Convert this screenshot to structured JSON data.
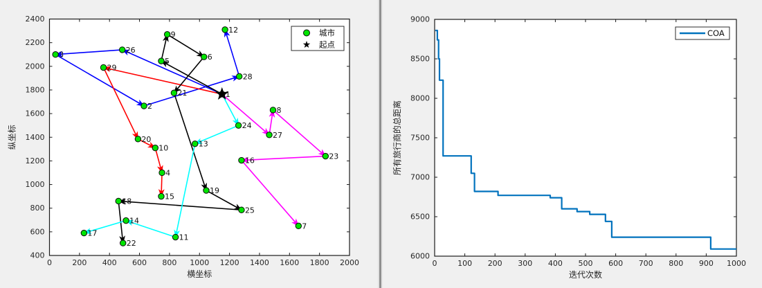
{
  "window": {
    "background": "#f0f0f0",
    "separator_color": "#8f8f8f",
    "axes_background": "#ffffff",
    "axis_color": "#1a1a1a",
    "tick_label_color": "#262626"
  },
  "chart_data": [
    {
      "type": "scatter",
      "title": "",
      "xlabel": "横坐标",
      "ylabel": "纵坐标",
      "xlim": [
        0,
        2000
      ],
      "ylim": [
        400,
        2400
      ],
      "xticks": [
        0,
        200,
        400,
        600,
        800,
        1000,
        1200,
        1400,
        1600,
        1800,
        2000
      ],
      "yticks": [
        400,
        600,
        800,
        1000,
        1200,
        1400,
        1600,
        1800,
        2000,
        2200,
        2400
      ],
      "grid": false,
      "legend": {
        "position": "top-right",
        "entries": [
          {
            "marker": "circle",
            "label": "城市",
            "color": "#00E400"
          },
          {
            "marker": "star",
            "label": "起点",
            "color": "#000000"
          }
        ]
      },
      "city_marker_color": "#00E400",
      "city_marker_edge": "#0b0b0b",
      "start_city_id": 1,
      "cities": [
        {
          "id": 1,
          "x": 1150,
          "y": 1765
        },
        {
          "id": 2,
          "x": 630,
          "y": 1665
        },
        {
          "id": 3,
          "x": 40,
          "y": 2100
        },
        {
          "id": 4,
          "x": 750,
          "y": 1100
        },
        {
          "id": 5,
          "x": 745,
          "y": 2045
        },
        {
          "id": 6,
          "x": 1030,
          "y": 2080
        },
        {
          "id": 7,
          "x": 1660,
          "y": 650
        },
        {
          "id": 8,
          "x": 1490,
          "y": 1630
        },
        {
          "id": 9,
          "x": 785,
          "y": 2270
        },
        {
          "id": 10,
          "x": 705,
          "y": 1310
        },
        {
          "id": 11,
          "x": 840,
          "y": 555
        },
        {
          "id": 12,
          "x": 1170,
          "y": 2310
        },
        {
          "id": 13,
          "x": 970,
          "y": 1345
        },
        {
          "id": 14,
          "x": 510,
          "y": 695
        },
        {
          "id": 15,
          "x": 745,
          "y": 900
        },
        {
          "id": 16,
          "x": 1280,
          "y": 1205
        },
        {
          "id": 17,
          "x": 230,
          "y": 590
        },
        {
          "id": 18,
          "x": 460,
          "y": 860
        },
        {
          "id": 19,
          "x": 1045,
          "y": 950
        },
        {
          "id": 20,
          "x": 590,
          "y": 1385
        },
        {
          "id": 21,
          "x": 830,
          "y": 1775
        },
        {
          "id": 22,
          "x": 490,
          "y": 505
        },
        {
          "id": 23,
          "x": 1840,
          "y": 1240
        },
        {
          "id": 24,
          "x": 1260,
          "y": 1500
        },
        {
          "id": 25,
          "x": 1280,
          "y": 785
        },
        {
          "id": 26,
          "x": 485,
          "y": 2140
        },
        {
          "id": 27,
          "x": 1465,
          "y": 1420
        },
        {
          "id": 28,
          "x": 1265,
          "y": 1915
        },
        {
          "id": 29,
          "x": 360,
          "y": 1990
        }
      ],
      "routes": [
        {
          "color": "#0000FF",
          "sequence": [
            1,
            26,
            3,
            2,
            28,
            12
          ]
        },
        {
          "color": "#FF0000",
          "sequence": [
            1,
            29,
            20,
            10,
            4,
            15
          ]
        },
        {
          "color": "#000000",
          "sequence": [
            1,
            5,
            9,
            6,
            21,
            19,
            25,
            18,
            22
          ]
        },
        {
          "color": "#00FFFF",
          "sequence": [
            1,
            24,
            13,
            11,
            14,
            17
          ]
        },
        {
          "color": "#FF00FF",
          "sequence": [
            1,
            27,
            8,
            23,
            16,
            7
          ]
        }
      ]
    },
    {
      "type": "line",
      "title": "",
      "xlabel": "迭代次数",
      "ylabel": "所有旅行商的总距离",
      "xlim": [
        0,
        1000
      ],
      "ylim": [
        6000,
        9000
      ],
      "xticks": [
        0,
        100,
        200,
        300,
        400,
        500,
        600,
        700,
        800,
        900,
        1000
      ],
      "yticks": [
        6000,
        6500,
        7000,
        7500,
        8000,
        8500,
        9000
      ],
      "grid": false,
      "legend": {
        "position": "top-right",
        "entries": [
          {
            "marker": "line",
            "label": "COA",
            "color": "#0072BD"
          }
        ]
      },
      "series": [
        {
          "name": "COA",
          "color": "#0072BD",
          "step_points": [
            [
              2,
              8860
            ],
            [
              9,
              8740
            ],
            [
              13,
              8500
            ],
            [
              16,
              8230
            ],
            [
              28,
              7270
            ],
            [
              121,
              7050
            ],
            [
              132,
              6820
            ],
            [
              210,
              6770
            ],
            [
              383,
              6740
            ],
            [
              421,
              6600
            ],
            [
              472,
              6565
            ],
            [
              514,
              6530
            ],
            [
              566,
              6440
            ],
            [
              587,
              6240
            ],
            [
              915,
              6090
            ],
            [
              1000,
              6090
            ]
          ]
        }
      ]
    }
  ]
}
